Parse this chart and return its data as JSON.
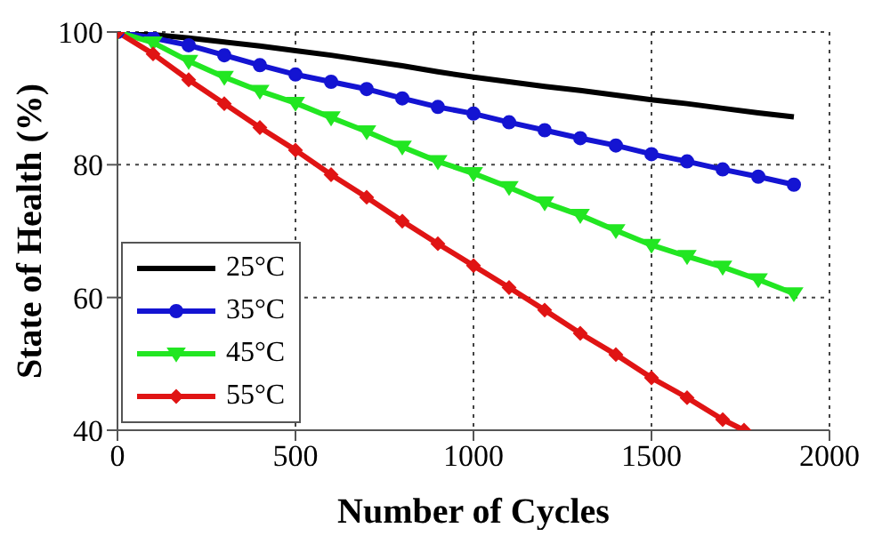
{
  "chart_data": {
    "type": "line",
    "xlabel": "Number of Cycles",
    "ylabel": "State of Health (%)",
    "xlim": [
      0,
      2000
    ],
    "xticks": [
      0,
      500,
      1000,
      1500,
      2000
    ],
    "ylim": [
      40,
      100
    ],
    "yticks": [
      40,
      60,
      80,
      100
    ],
    "grid": true,
    "legend": "bottom left",
    "line_style": "solid",
    "series": [
      {
        "name": "25°C",
        "color": "#000000",
        "marker": "none",
        "x": [
          0,
          100,
          200,
          300,
          400,
          500,
          600,
          700,
          800,
          900,
          1000,
          1100,
          1200,
          1300,
          1400,
          1500,
          1600,
          1700,
          1800,
          1900
        ],
        "values": [
          100,
          99.6,
          99.1,
          98.5,
          97.9,
          97.2,
          96.5,
          95.7,
          94.9,
          94.0,
          93.2,
          92.5,
          91.8,
          91.2,
          90.5,
          89.8,
          89.2,
          88.5,
          87.8,
          87.2
        ]
      },
      {
        "name": "35°C",
        "color": "#1414d2",
        "marker": "circle",
        "x": [
          0,
          100,
          200,
          300,
          400,
          500,
          600,
          700,
          800,
          900,
          1000,
          1100,
          1200,
          1300,
          1400,
          1500,
          1600,
          1700,
          1800,
          1900
        ],
        "values": [
          100,
          99.1,
          98,
          96.5,
          95,
          93.6,
          92.5,
          91.4,
          90,
          88.7,
          87.7,
          86.4,
          85.2,
          84,
          82.9,
          81.6,
          80.5,
          79.3,
          78.2,
          77
        ]
      },
      {
        "name": "45°C",
        "color": "#22e622",
        "marker": "triangle",
        "x": [
          0,
          100,
          200,
          300,
          400,
          500,
          600,
          700,
          800,
          900,
          1000,
          1100,
          1200,
          1300,
          1400,
          1500,
          1600,
          1700,
          1800,
          1900
        ],
        "values": [
          100,
          98.4,
          95.6,
          93.2,
          91.1,
          89.3,
          87.1,
          85,
          82.7,
          80.5,
          78.7,
          76.6,
          74.3,
          72.4,
          70.1,
          67.9,
          66.2,
          64.6,
          62.7,
          60.6
        ]
      },
      {
        "name": "55°C",
        "color": "#e01414",
        "marker": "diamond",
        "x": [
          0,
          100,
          200,
          300,
          400,
          500,
          600,
          700,
          800,
          900,
          1000,
          1100,
          1200,
          1300,
          1400,
          1500,
          1600,
          1700,
          1760
        ],
        "values": [
          100,
          96.7,
          92.8,
          89.2,
          85.6,
          82.2,
          78.5,
          75.1,
          71.5,
          68.1,
          64.8,
          61.5,
          58.1,
          54.6,
          51.4,
          47.9,
          44.9,
          41.6,
          40
        ]
      }
    ]
  }
}
